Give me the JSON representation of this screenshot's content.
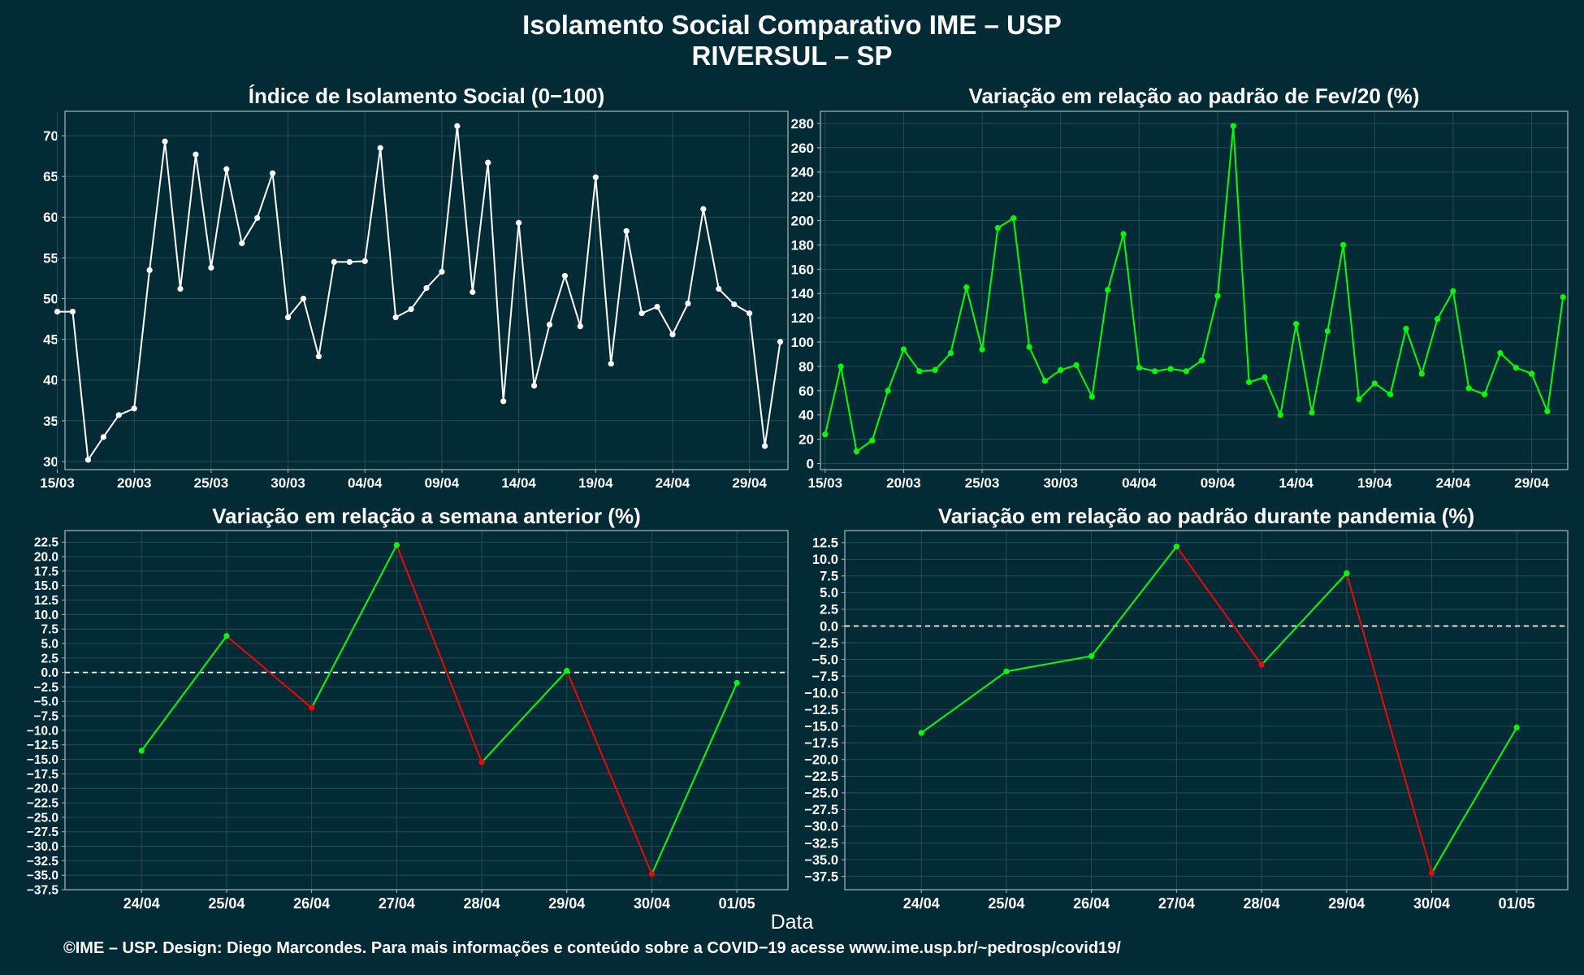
{
  "title": {
    "line1": "Isolamento Social Comparativo IME – USP",
    "line2": "RIVERSUL – SP"
  },
  "x_axis_title": "Data",
  "footer": "©IME – USP. Design: Diego Marcondes. Para mais informações e conteúdo sobre a COVID−19 acesse www.ime.usp.br/~pedrosp/covid19/",
  "colors": {
    "background": "#022b36",
    "line_white": "#ffffff",
    "line_green": "#00ff00",
    "line_red": "#ff0000"
  },
  "chart_data": [
    {
      "type": "line",
      "title": "Índice de Isolamento Social (0−100)",
      "x": [
        "15/03",
        "16/03",
        "17/03",
        "18/03",
        "19/03",
        "20/03",
        "21/03",
        "22/03",
        "23/03",
        "24/03",
        "25/03",
        "26/03",
        "27/03",
        "28/03",
        "29/03",
        "30/03",
        "31/03",
        "01/04",
        "02/04",
        "03/04",
        "04/04",
        "05/04",
        "06/04",
        "07/04",
        "08/04",
        "09/04",
        "10/04",
        "11/04",
        "12/04",
        "13/04",
        "14/04",
        "15/04",
        "16/04",
        "17/04",
        "18/04",
        "19/04",
        "20/04",
        "21/04",
        "22/04",
        "23/04",
        "24/04",
        "25/04",
        "26/04",
        "27/04",
        "28/04",
        "29/04",
        "30/04",
        "01/05"
      ],
      "xticks": [
        "15/03",
        "20/03",
        "25/03",
        "30/03",
        "04/04",
        "09/04",
        "14/04",
        "19/04",
        "24/04",
        "29/04"
      ],
      "yticks": [
        "30",
        "35",
        "40",
        "45",
        "50",
        "55",
        "60",
        "65",
        "70"
      ],
      "ylim": [
        29,
        73
      ],
      "series": [
        {
          "values": [
            48.4,
            48.4,
            30.2,
            33.0,
            35.7,
            36.5,
            53.5,
            69.3,
            51.2,
            67.7,
            53.8,
            65.9,
            56.8,
            59.9,
            65.4,
            47.7,
            50.0,
            42.9,
            54.5,
            54.5,
            54.6,
            68.5,
            47.7,
            48.7,
            51.3,
            53.3,
            71.2,
            50.8,
            66.7,
            37.4,
            59.3,
            39.3,
            46.8,
            52.8,
            46.6,
            64.9,
            42.0,
            58.3,
            48.2,
            49.0,
            45.6,
            49.4,
            61.0,
            51.2,
            49.3,
            48.2,
            31.9,
            44.7
          ]
        }
      ],
      "grid": true
    },
    {
      "type": "line",
      "title": "Variação em relação ao padrão de Fev/20 (%)",
      "x": [
        "15/03",
        "16/03",
        "17/03",
        "18/03",
        "19/03",
        "20/03",
        "21/03",
        "22/03",
        "23/03",
        "24/03",
        "25/03",
        "26/03",
        "27/03",
        "28/03",
        "29/03",
        "30/03",
        "31/03",
        "01/04",
        "02/04",
        "03/04",
        "04/04",
        "05/04",
        "06/04",
        "07/04",
        "08/04",
        "09/04",
        "10/04",
        "11/04",
        "12/04",
        "13/04",
        "14/04",
        "15/04",
        "16/04",
        "17/04",
        "18/04",
        "19/04",
        "20/04",
        "21/04",
        "22/04",
        "23/04",
        "24/04",
        "25/04",
        "26/04",
        "27/04",
        "28/04",
        "29/04",
        "30/04",
        "01/05"
      ],
      "xticks": [
        "15/03",
        "20/03",
        "25/03",
        "30/03",
        "04/04",
        "09/04",
        "14/04",
        "19/04",
        "24/04",
        "29/04"
      ],
      "yticks": [
        "0",
        "20",
        "40",
        "60",
        "80",
        "100",
        "120",
        "140",
        "160",
        "180",
        "200",
        "220",
        "240",
        "260",
        "280"
      ],
      "ylim": [
        -5,
        290
      ],
      "series": [
        {
          "values": [
            24,
            80,
            10,
            19,
            60,
            94,
            76,
            77,
            91,
            145,
            94,
            194,
            202,
            96,
            68,
            77,
            81,
            55,
            143,
            189,
            79,
            76,
            78,
            76,
            85,
            138,
            278,
            67,
            71,
            40,
            115,
            42,
            109,
            180,
            53,
            66,
            57,
            111,
            74,
            119,
            142,
            62,
            57,
            91,
            79,
            74,
            43,
            137
          ]
        }
      ],
      "grid": true
    },
    {
      "type": "line",
      "title": "Variação em relação a semana anterior (%)",
      "x": [
        "24/04",
        "25/04",
        "26/04",
        "27/04",
        "28/04",
        "29/04",
        "30/04",
        "01/05"
      ],
      "yticks": [
        "22.5",
        "20.0",
        "17.5",
        "15.0",
        "12.5",
        "10.0",
        "7.5",
        "5.0",
        "2.5",
        "0.0",
        "−2.5",
        "−5.0",
        "−7.5",
        "−10.0",
        "−12.5",
        "−15.0",
        "−17.5",
        "−20.0",
        "−22.5",
        "−25.0",
        "−27.5",
        "−30.0",
        "−32.5",
        "−35.0",
        "−37.5"
      ],
      "ylim": [
        -37.5,
        24.5
      ],
      "series": [
        {
          "values": [
            -13.5,
            6.3,
            -6.1,
            22.0,
            -15.5,
            0.3,
            -34.8,
            -1.8
          ]
        }
      ],
      "reference_line": 0,
      "segment_colors": "green when rising, red when falling",
      "grid": true
    },
    {
      "type": "line",
      "title": "Variação em relação ao padrão durante pandemia (%)",
      "x": [
        "24/04",
        "25/04",
        "26/04",
        "27/04",
        "28/04",
        "29/04",
        "30/04",
        "01/05"
      ],
      "yticks": [
        "12.5",
        "10.0",
        "7.5",
        "5.0",
        "2.5",
        "0.0",
        "−2.5",
        "−5.0",
        "−7.5",
        "−10.0",
        "−12.5",
        "−15.0",
        "−17.5",
        "−20.0",
        "−22.5",
        "−25.0",
        "−27.5",
        "−30.0",
        "−32.5",
        "−35.0",
        "−37.5"
      ],
      "ylim": [
        -39.5,
        14.3
      ],
      "series": [
        {
          "values": [
            -16.0,
            -6.8,
            -4.5,
            11.9,
            -5.8,
            7.9,
            -37.0,
            -15.2
          ]
        }
      ],
      "reference_line": 0,
      "segment_colors": "green when rising, red when falling",
      "grid": true
    }
  ]
}
